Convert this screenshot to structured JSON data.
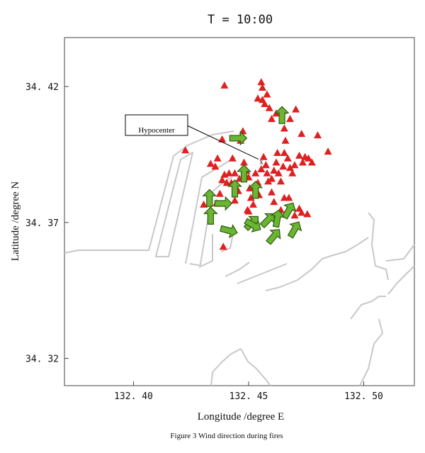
{
  "chart_data": {
    "type": "scatter",
    "title": "T = 10:00",
    "xlabel": "Longitude /degree E",
    "ylabel": "Latitude /degree N",
    "caption": "Figure 3 Wind direction during fires",
    "xlim": [
      132.37,
      132.522
    ],
    "ylim": [
      34.31,
      34.438
    ],
    "xticks": [
      132.4,
      132.45,
      132.5
    ],
    "xtick_labels": [
      "132. 40",
      "132. 45",
      "132. 50"
    ],
    "yticks": [
      34.32,
      34.37,
      34.42
    ],
    "ytick_labels": [
      "34. 32",
      "34. 37",
      "34. 42"
    ],
    "grid": false,
    "annotation": {
      "text": "Hypocenter",
      "point": [
        132.4555,
        34.3925
      ]
    },
    "colors": {
      "fire": "#e02020",
      "arrow_fill": "#6ab531",
      "arrow_stroke": "#2f5a12",
      "coastline": "#c8c8c8"
    },
    "series": [
      {
        "marker": "triangle",
        "points": [
          [
            132.4225,
            34.3965
          ],
          [
            132.4305,
            34.3765
          ],
          [
            132.4335,
            34.3915
          ],
          [
            132.4355,
            34.3905
          ],
          [
            132.4365,
            34.3935
          ],
          [
            132.4385,
            34.4005
          ],
          [
            132.4395,
            34.4203
          ],
          [
            132.436,
            34.377
          ],
          [
            132.4375,
            34.3805
          ],
          [
            132.4385,
            34.3855
          ],
          [
            132.4395,
            34.3875
          ],
          [
            132.4405,
            34.3845
          ],
          [
            132.4415,
            34.388
          ],
          [
            132.4425,
            34.3845
          ],
          [
            132.443,
            34.3935
          ],
          [
            132.444,
            34.388
          ],
          [
            132.4455,
            34.3815
          ],
          [
            132.446,
            34.386
          ],
          [
            132.4465,
            34.4
          ],
          [
            132.4475,
            34.4035
          ],
          [
            132.448,
            34.392
          ],
          [
            132.449,
            34.389
          ],
          [
            132.45,
            34.3865
          ],
          [
            132.4505,
            34.3825
          ],
          [
            132.451,
            34.379
          ],
          [
            132.45,
            34.374
          ],
          [
            132.452,
            34.3765
          ],
          [
            132.453,
            34.388
          ],
          [
            132.454,
            34.3845
          ],
          [
            132.4545,
            34.38
          ],
          [
            132.4555,
            34.3895
          ],
          [
            132.4565,
            34.394
          ],
          [
            132.4575,
            34.391
          ],
          [
            132.458,
            34.388
          ],
          [
            132.4585,
            34.385
          ],
          [
            132.46,
            34.386
          ],
          [
            132.461,
            34.389
          ],
          [
            132.462,
            34.392
          ],
          [
            132.4625,
            34.3955
          ],
          [
            132.463,
            34.388
          ],
          [
            132.464,
            34.385
          ],
          [
            132.465,
            34.3905
          ],
          [
            132.4655,
            34.3955
          ],
          [
            132.467,
            34.3935
          ],
          [
            132.468,
            34.39
          ],
          [
            132.469,
            34.388
          ],
          [
            132.47,
            34.391
          ],
          [
            132.472,
            34.3945
          ],
          [
            132.4735,
            34.392
          ],
          [
            132.4745,
            34.394
          ],
          [
            132.476,
            34.3935
          ],
          [
            132.4775,
            34.392
          ],
          [
            132.48,
            34.402
          ],
          [
            132.4845,
            34.396
          ],
          [
            132.4555,
            34.4215
          ],
          [
            132.456,
            34.4195
          ],
          [
            132.454,
            34.4155
          ],
          [
            132.456,
            34.415
          ],
          [
            132.457,
            34.4135
          ],
          [
            132.458,
            34.417
          ],
          [
            132.459,
            34.412
          ],
          [
            132.46,
            34.408
          ],
          [
            132.462,
            34.41
          ],
          [
            132.465,
            34.411
          ],
          [
            132.468,
            34.408
          ],
          [
            132.4705,
            34.4115
          ],
          [
            132.473,
            34.4025
          ],
          [
            132.4655,
            34.4045
          ],
          [
            132.466,
            34.4
          ],
          [
            132.46,
            34.381
          ],
          [
            132.461,
            34.3775
          ],
          [
            132.464,
            34.3745
          ],
          [
            132.4655,
            34.379
          ],
          [
            132.4675,
            34.379
          ],
          [
            132.469,
            34.3755
          ],
          [
            132.47,
            34.3725
          ],
          [
            132.472,
            34.375
          ],
          [
            132.473,
            34.3735
          ],
          [
            132.4755,
            34.373
          ],
          [
            132.4495,
            34.3745
          ],
          [
            132.439,
            34.361
          ],
          [
            132.444,
            34.378
          ]
        ]
      },
      {
        "marker": "wind-arrow",
        "points": [
          [
            132.4645,
            34.4095,
            90
          ],
          [
            132.4455,
            34.401,
            0
          ],
          [
            132.448,
            34.388,
            90
          ],
          [
            132.444,
            34.3825,
            90
          ],
          [
            132.453,
            34.382,
            90
          ],
          [
            132.433,
            34.379,
            90
          ],
          [
            132.439,
            34.377,
            0
          ],
          [
            132.4515,
            34.37,
            45
          ],
          [
            132.4335,
            34.3725,
            90
          ],
          [
            132.4415,
            34.367,
            -15
          ],
          [
            132.452,
            34.369,
            -30
          ],
          [
            132.4585,
            34.371,
            45
          ],
          [
            132.4675,
            34.3745,
            60
          ],
          [
            132.4625,
            34.3715,
            80
          ],
          [
            132.461,
            34.365,
            50
          ],
          [
            132.47,
            34.3675,
            60
          ]
        ]
      }
    ]
  }
}
